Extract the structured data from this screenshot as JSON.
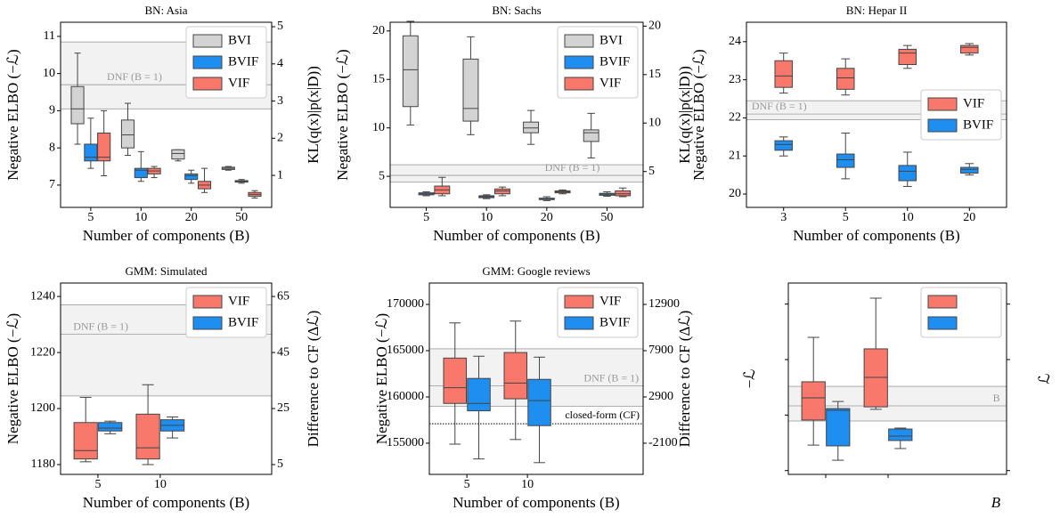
{
  "chart_data": [
    {
      "type": "box",
      "title": "BN: Asia",
      "xlabel": "Number of components (B)",
      "ylabel": "Negative ELBO (−ℒ)",
      "y2label": "KL(q(x)|p(x|D))",
      "categories": [
        5,
        10,
        20,
        50
      ],
      "dodge": true,
      "legend": "upper right",
      "series": [
        {
          "name": "BVI",
          "color": "#d3d3d3",
          "values": [
            {
              "min": 8.1,
              "q1": 8.65,
              "median": 9.05,
              "q3": 9.65,
              "max": 10.55
            },
            {
              "min": 7.8,
              "q1": 8.0,
              "median": 8.35,
              "q3": 8.75,
              "max": 9.2
            },
            {
              "min": 7.65,
              "q1": 7.7,
              "median": 7.85,
              "q3": 7.95,
              "max": 7.95
            },
            {
              "min": 7.4,
              "q1": 7.42,
              "median": 7.45,
              "q3": 7.48,
              "max": 7.5
            }
          ]
        },
        {
          "name": "BVIF",
          "color": "#1f8ef1",
          "values": [
            {
              "min": 7.45,
              "q1": 7.65,
              "median": 7.75,
              "q3": 8.1,
              "max": 8.8
            },
            {
              "min": 7.1,
              "q1": 7.2,
              "median": 7.4,
              "q3": 7.45,
              "max": 7.9
            },
            {
              "min": 7.05,
              "q1": 7.15,
              "median": 7.25,
              "q3": 7.3,
              "max": 7.4
            },
            {
              "min": 7.05,
              "q1": 7.08,
              "median": 7.1,
              "q3": 7.12,
              "max": 7.15
            }
          ]
        },
        {
          "name": "VIF",
          "color": "#f8786b",
          "values": [
            {
              "min": 7.25,
              "q1": 7.65,
              "median": 7.75,
              "q3": 8.4,
              "max": 9.0
            },
            {
              "min": 7.2,
              "q1": 7.3,
              "median": 7.38,
              "q3": 7.45,
              "max": 7.5
            },
            {
              "min": 6.8,
              "q1": 6.9,
              "median": 7.0,
              "q3": 7.1,
              "max": 7.45
            },
            {
              "min": 6.65,
              "q1": 6.7,
              "median": 6.75,
              "q3": 6.8,
              "max": 6.85
            }
          ]
        }
      ],
      "ylim": [
        6.4,
        11.38
      ],
      "yticks": [
        7,
        8,
        9,
        10,
        11
      ],
      "y2lim": [
        0.14,
        5.12
      ],
      "y2ticks": [
        1,
        2,
        3,
        4,
        5
      ],
      "band": {
        "label": "DNF (B = 1)",
        "low": 9.05,
        "mid": 9.7,
        "high": 10.85
      }
    },
    {
      "type": "box",
      "title": "BN: Sachs",
      "xlabel": "Number of components (B)",
      "ylabel": "Negative ELBO (−ℒ)",
      "y2label": "KL(q(x)|p(x|D))",
      "categories": [
        5,
        10,
        20,
        50
      ],
      "dodge": true,
      "legend": "upper right",
      "series": [
        {
          "name": "BVI",
          "color": "#d3d3d3",
          "values": [
            {
              "min": 10.3,
              "q1": 12.2,
              "median": 16,
              "q3": 19.5,
              "max": 21
            },
            {
              "min": 9.3,
              "q1": 10.7,
              "median": 12,
              "q3": 17.1,
              "max": 19.4
            },
            {
              "min": 8.3,
              "q1": 9.5,
              "median": 10,
              "q3": 10.6,
              "max": 11.8
            },
            {
              "min": 6.9,
              "q1": 8.6,
              "median": 9.5,
              "q3": 9.8,
              "max": 11.5
            }
          ]
        },
        {
          "name": "BVIF",
          "color": "#1f8ef1",
          "values": [
            {
              "min": 3.0,
              "q1": 3.1,
              "median": 3.2,
              "q3": 3.3,
              "max": 3.4
            },
            {
              "min": 2.7,
              "q1": 2.8,
              "median": 2.9,
              "q3": 3.0,
              "max": 3.1
            },
            {
              "min": 2.5,
              "q1": 2.6,
              "median": 2.7,
              "q3": 2.75,
              "max": 2.9
            },
            {
              "min": 2.95,
              "q1": 3.05,
              "median": 3.15,
              "q3": 3.25,
              "max": 3.4
            }
          ]
        },
        {
          "name": "VIF",
          "color": "#f8786b",
          "values": [
            {
              "min": 3.0,
              "q1": 3.2,
              "median": 3.6,
              "q3": 4.0,
              "max": 4.9
            },
            {
              "min": 3.0,
              "q1": 3.2,
              "median": 3.5,
              "q3": 3.7,
              "max": 3.9
            },
            {
              "min": 3.2,
              "q1": 3.3,
              "median": 3.4,
              "q3": 3.5,
              "max": 3.6
            },
            {
              "min": 2.9,
              "q1": 3.0,
              "median": 3.2,
              "q3": 3.5,
              "max": 3.8
            }
          ]
        }
      ],
      "ylim": [
        1.8,
        20.9
      ],
      "yticks": [
        5,
        10,
        15,
        20
      ],
      "y2lim": [
        1.3,
        20.4
      ],
      "y2ticks": [
        5,
        10,
        15,
        20
      ],
      "band": {
        "label": "DNF (B = 1)",
        "low": 4.4,
        "mid": 5.1,
        "high": 6.2
      }
    },
    {
      "type": "box",
      "title": "BN: Hepar II",
      "xlabel": "Number of components (B)",
      "ylabel": "Negative ELBO (−ℒ)",
      "categories": [
        3,
        5,
        10,
        20
      ],
      "dodge": false,
      "legend": "center right",
      "series": [
        {
          "name": "VIF",
          "color": "#f8786b",
          "values": [
            {
              "min": 22.65,
              "q1": 22.8,
              "median": 23.1,
              "q3": 23.5,
              "max": 23.7
            },
            {
              "min": 22.6,
              "q1": 22.75,
              "median": 23.05,
              "q3": 23.3,
              "max": 23.55
            },
            {
              "min": 23.3,
              "q1": 23.4,
              "median": 23.7,
              "q3": 23.8,
              "max": 23.9
            },
            {
              "min": 23.65,
              "q1": 23.7,
              "median": 23.85,
              "q3": 23.9,
              "max": 23.95
            }
          ]
        },
        {
          "name": "BVIF",
          "color": "#1f8ef1",
          "values": [
            {
              "min": 21.0,
              "q1": 21.15,
              "median": 21.3,
              "q3": 21.4,
              "max": 21.5
            },
            {
              "min": 20.4,
              "q1": 20.7,
              "median": 20.9,
              "q3": 21.05,
              "max": 21.6
            },
            {
              "min": 20.2,
              "q1": 20.35,
              "median": 20.6,
              "q3": 20.75,
              "max": 21.1
            },
            {
              "min": 20.5,
              "q1": 20.55,
              "median": 20.65,
              "q3": 20.7,
              "max": 20.8
            }
          ]
        }
      ],
      "ylim": [
        19.65,
        24.51
      ],
      "yticks": [
        20,
        21,
        22,
        23,
        24
      ],
      "band": {
        "label": "DNF (B = 1)",
        "low": 21.95,
        "mid": 22.1,
        "high": 22.45
      }
    },
    {
      "type": "box",
      "title": "GMM: Simulated",
      "xlabel": "Number of components (B)",
      "ylabel": "Negative ELBO (−ℒ)",
      "y2label": "Difference to CF (Δℒ)",
      "categories": [
        5,
        10
      ],
      "xlim": [
        -0.6,
        2.79
      ],
      "dodge": true,
      "legend": "upper right",
      "series": [
        {
          "name": "VIF",
          "color": "#f8786b",
          "values": [
            {
              "min": 1181,
              "q1": 1182,
              "median": 1185,
              "q3": 1195,
              "max": 1204
            },
            {
              "min": 1180,
              "q1": 1182,
              "median": 1186,
              "q3": 1198,
              "max": 1208.5
            }
          ]
        },
        {
          "name": "BVIF",
          "color": "#1f8ef1",
          "values": [
            {
              "min": 1191,
              "q1": 1192,
              "median": 1193,
              "q3": 1195,
              "max": 1195.5
            },
            {
              "min": 1189.5,
              "q1": 1192,
              "median": 1194,
              "q3": 1196,
              "max": 1197
            }
          ]
        }
      ],
      "ylim": [
        1176.5,
        1244.8
      ],
      "yticks": [
        1180,
        1200,
        1220,
        1240
      ],
      "y2lim": [
        1.5,
        69.8
      ],
      "y2ticks": [
        5,
        25,
        45,
        65
      ],
      "band": {
        "label": "DNF (B = 1)",
        "low": 1204.5,
        "mid": 1226.5,
        "high": 1237
      }
    },
    {
      "type": "box",
      "title": "GMM: Google reviews",
      "xlabel": "Number of components (B)",
      "ylabel": "Negative ELBO (−ℒ)",
      "y2label": "Difference to CF (Δℒ)",
      "categories": [
        5,
        10
      ],
      "xlim": [
        -0.62,
        2.91
      ],
      "dodge": true,
      "legend": "upper right",
      "series": [
        {
          "name": "VIF",
          "color": "#f8786b",
          "values": [
            {
              "min": 154900,
              "q1": 159300,
              "median": 161000,
              "q3": 164200,
              "max": 168000
            },
            {
              "min": 155400,
              "q1": 159800,
              "median": 161500,
              "q3": 164800,
              "max": 168200
            }
          ]
        },
        {
          "name": "BVIF",
          "color": "#1f8ef1",
          "values": [
            {
              "min": 153300,
              "q1": 158500,
              "median": 159300,
              "q3": 162000,
              "max": 164400
            },
            {
              "min": 152900,
              "q1": 156900,
              "median": 159600,
              "q3": 161900,
              "max": 164300
            }
          ]
        }
      ],
      "ylim": [
        151630,
        172310
      ],
      "yticks": [
        155000,
        160000,
        165000,
        170000
      ],
      "y2lim": [
        -5470,
        15210
      ],
      "y2ticks": [
        -2100,
        2900,
        7900,
        12900
      ],
      "band": {
        "label": "DNF (B = 1)",
        "low": 159000,
        "mid": 161200,
        "high": 165200
      },
      "reference": {
        "label": "closed-form (CF)",
        "value": 157100
      }
    },
    {
      "type": "box",
      "xlabel": "B",
      "ylabel": "−ℒ",
      "y2label": "ℒ",
      "tick_labels": false,
      "categories": [
        null,
        null
      ],
      "xlim": [
        -0.6,
        2.9
      ],
      "dodge": true,
      "legend": "upper right",
      "series": [
        {
          "color": "#f8786b",
          "values": [
            {
              "min": 15.3,
              "q1": 28.4,
              "median": 40,
              "q3": 48.4,
              "max": 71.6
            },
            {
              "min": 34,
              "q1": 35.3,
              "median": 50.7,
              "q3": 65.6,
              "max": 92.1
            }
          ]
        },
        {
          "color": "#1f8ef1",
          "values": [
            {
              "min": 7.4,
              "q1": 14.9,
              "median": 33.5,
              "q3": 34.4,
              "max": 38.1
            },
            {
              "min": 13.5,
              "q1": 17.7,
              "median": 20,
              "q3": 23.7,
              "max": 24.2
            }
          ]
        }
      ],
      "ylim": [
        0,
        100
      ],
      "yticks": [
        2,
        31,
        60,
        89
      ],
      "y2lim": [
        0,
        100
      ],
      "y2ticks": [
        2,
        60,
        89
      ],
      "band": {
        "label": "B",
        "low": 27.9,
        "mid": 35.8,
        "high": 46
      }
    }
  ]
}
